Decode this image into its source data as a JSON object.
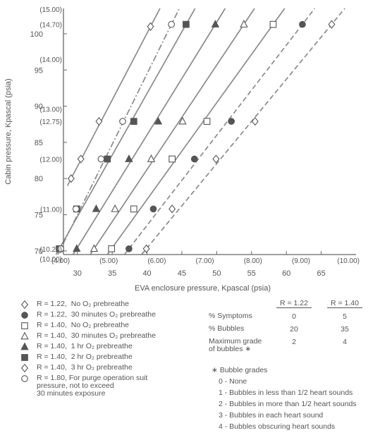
{
  "chart_data": {
    "type": "line",
    "xlabel": "EVA enclosure pressure, Kpascal (psia)",
    "ylabel": "Cabin pressure, Kpascal (psia)",
    "xlim": [
      28,
      70
    ],
    "ylim": [
      69.5,
      103.5
    ],
    "x_ticks": [
      30,
      35,
      40,
      45,
      50,
      55,
      60,
      65
    ],
    "x_psia_ticks": [
      {
        "kpa": 27.6,
        "label": "(4.00)"
      },
      {
        "kpa": 34.5,
        "label": "(5.00)"
      },
      {
        "kpa": 41.4,
        "label": "(6.00)"
      },
      {
        "kpa": 48.3,
        "label": "(7.00)"
      },
      {
        "kpa": 55.2,
        "label": "(8.00)"
      },
      {
        "kpa": 62.1,
        "label": "(9.00)"
      },
      {
        "kpa": 68.9,
        "label": "(10.00)"
      }
    ],
    "y_ticks": [
      70,
      75,
      80,
      85,
      90,
      95,
      100
    ],
    "y_psia_ticks": [
      {
        "kpa": 68.9,
        "label": "(10.00)"
      },
      {
        "kpa": 70.3,
        "label": "(10.20)"
      },
      {
        "kpa": 75.8,
        "label": "(11.00)"
      },
      {
        "kpa": 82.7,
        "label": "(12.00)"
      },
      {
        "kpa": 87.9,
        "label": "(12.75)"
      },
      {
        "kpa": 89.6,
        "label": "(13.00)"
      },
      {
        "kpa": 96.5,
        "label": "(14.00)"
      },
      {
        "kpa": 101.3,
        "label": "(14.70)"
      },
      {
        "kpa": 103.4,
        "label": "(15.00)"
      }
    ],
    "series": [
      {
        "name": "R = 1.22, No O2 prebreathe",
        "marker": "diamond-open",
        "line": "dashed",
        "points": [
          [
            39.9,
            70.3
          ],
          [
            43.6,
            75.8
          ],
          [
            49.9,
            82.7
          ],
          [
            55.5,
            87.9
          ],
          [
            66.5,
            101.3
          ]
        ]
      },
      {
        "name": "R = 1.22, 30 minutes O2 prebreathe",
        "marker": "circle-filled",
        "line": "dashed",
        "points": [
          [
            37.4,
            70.3
          ],
          [
            40.9,
            75.8
          ],
          [
            46.8,
            82.7
          ],
          [
            52.1,
            87.9
          ],
          [
            62.3,
            101.3
          ]
        ]
      },
      {
        "name": "R = 1.40, No O2 prebreathe",
        "marker": "square-open",
        "line": "solid",
        "points": [
          [
            34.9,
            70.3
          ],
          [
            38.1,
            75.8
          ],
          [
            43.6,
            82.7
          ],
          [
            48.6,
            87.9
          ],
          [
            58.1,
            101.3
          ]
        ]
      },
      {
        "name": "R = 1.40, 30 minutes O2 prebreathe",
        "marker": "triangle-open",
        "line": "solid",
        "points": [
          [
            32.4,
            70.3
          ],
          [
            35.4,
            75.8
          ],
          [
            40.6,
            82.7
          ],
          [
            45.1,
            87.9
          ],
          [
            53.9,
            101.3
          ]
        ]
      },
      {
        "name": "R = 1.40, 1 hr O2 prebreathe",
        "marker": "triangle-filled",
        "line": "solid",
        "points": [
          [
            29.9,
            70.3
          ],
          [
            32.7,
            75.8
          ],
          [
            37.4,
            82.7
          ],
          [
            41.6,
            87.9
          ],
          [
            49.8,
            101.3
          ]
        ]
      },
      {
        "name": "R = 1.40, 2 hr O2 prebreathe",
        "marker": "square-filled",
        "line": "solid",
        "points": [
          [
            27.4,
            70.3
          ],
          [
            29.9,
            75.8
          ],
          [
            34.3,
            82.7
          ],
          [
            38.1,
            87.9
          ],
          [
            45.6,
            101.3
          ]
        ]
      },
      {
        "name": "R = 1.40, 3 hr O2 prebreathe",
        "marker": "diamond-open",
        "line": "solid",
        "points": [
          [
            29.1,
            80.0
          ],
          [
            30.5,
            82.7
          ],
          [
            33.1,
            87.9
          ],
          [
            40.5,
            101.0
          ]
        ]
      },
      {
        "name": "R = 1.80, For purge operation suit pressure, not to exceed 30 minutes exposure",
        "marker": "circle-open",
        "line": "dashdot",
        "points": [
          [
            27.6,
            70.3
          ],
          [
            29.8,
            75.8
          ],
          [
            33.4,
            82.7
          ],
          [
            36.5,
            87.9
          ],
          [
            43.5,
            101.3
          ]
        ]
      }
    ]
  },
  "legend": [
    {
      "marker": "diamond-open",
      "label": "R = 1.22,  No O₂ prebreathe"
    },
    {
      "marker": "circle-filled",
      "label": "R = 1.22,  30 minutes O₂ prebreathe"
    },
    {
      "marker": "square-open",
      "label": "R = 1.40,  No O₂ prebreathe"
    },
    {
      "marker": "triangle-open",
      "label": "R = 1.40,  30 minutes O₂ prebreathe"
    },
    {
      "marker": "triangle-filled",
      "label": "R = 1.40,  1 hr O₂ prebreathe"
    },
    {
      "marker": "square-filled",
      "label": "R = 1.40,  2 hr O₂ prebreathe"
    },
    {
      "marker": "diamond-open",
      "label": "R = 1.40,  3 hr O₂ prebreathe"
    },
    {
      "marker": "circle-open",
      "label": "R = 1.80,  For purge operation suit\npressure, not to exceed\n30 minutes exposure"
    }
  ],
  "stats": {
    "col1": "R = 1.22",
    "col2": "R = 1.40",
    "rows": [
      {
        "label": "% Symptoms",
        "v1": "0",
        "v2": "5"
      },
      {
        "label": "% Bubbles",
        "v1": "20",
        "v2": "35"
      },
      {
        "label": "Maximum grade\nof bubbles ∗",
        "v1": "2",
        "v2": "4"
      }
    ]
  },
  "grades": {
    "title": "∗ Bubble grades",
    "items": [
      "0 - None",
      "1 - Bubbles in less than 1/2 heart sounds",
      "2 - Bubbles in more than 1/2 heart sounds",
      "3 - Bubbles in each heart sound",
      "4 - Bubbles obscuring heart sounds"
    ]
  },
  "colors": {
    "ink": "#555555",
    "line": "#8a8a8a",
    "axis": "#666666"
  }
}
